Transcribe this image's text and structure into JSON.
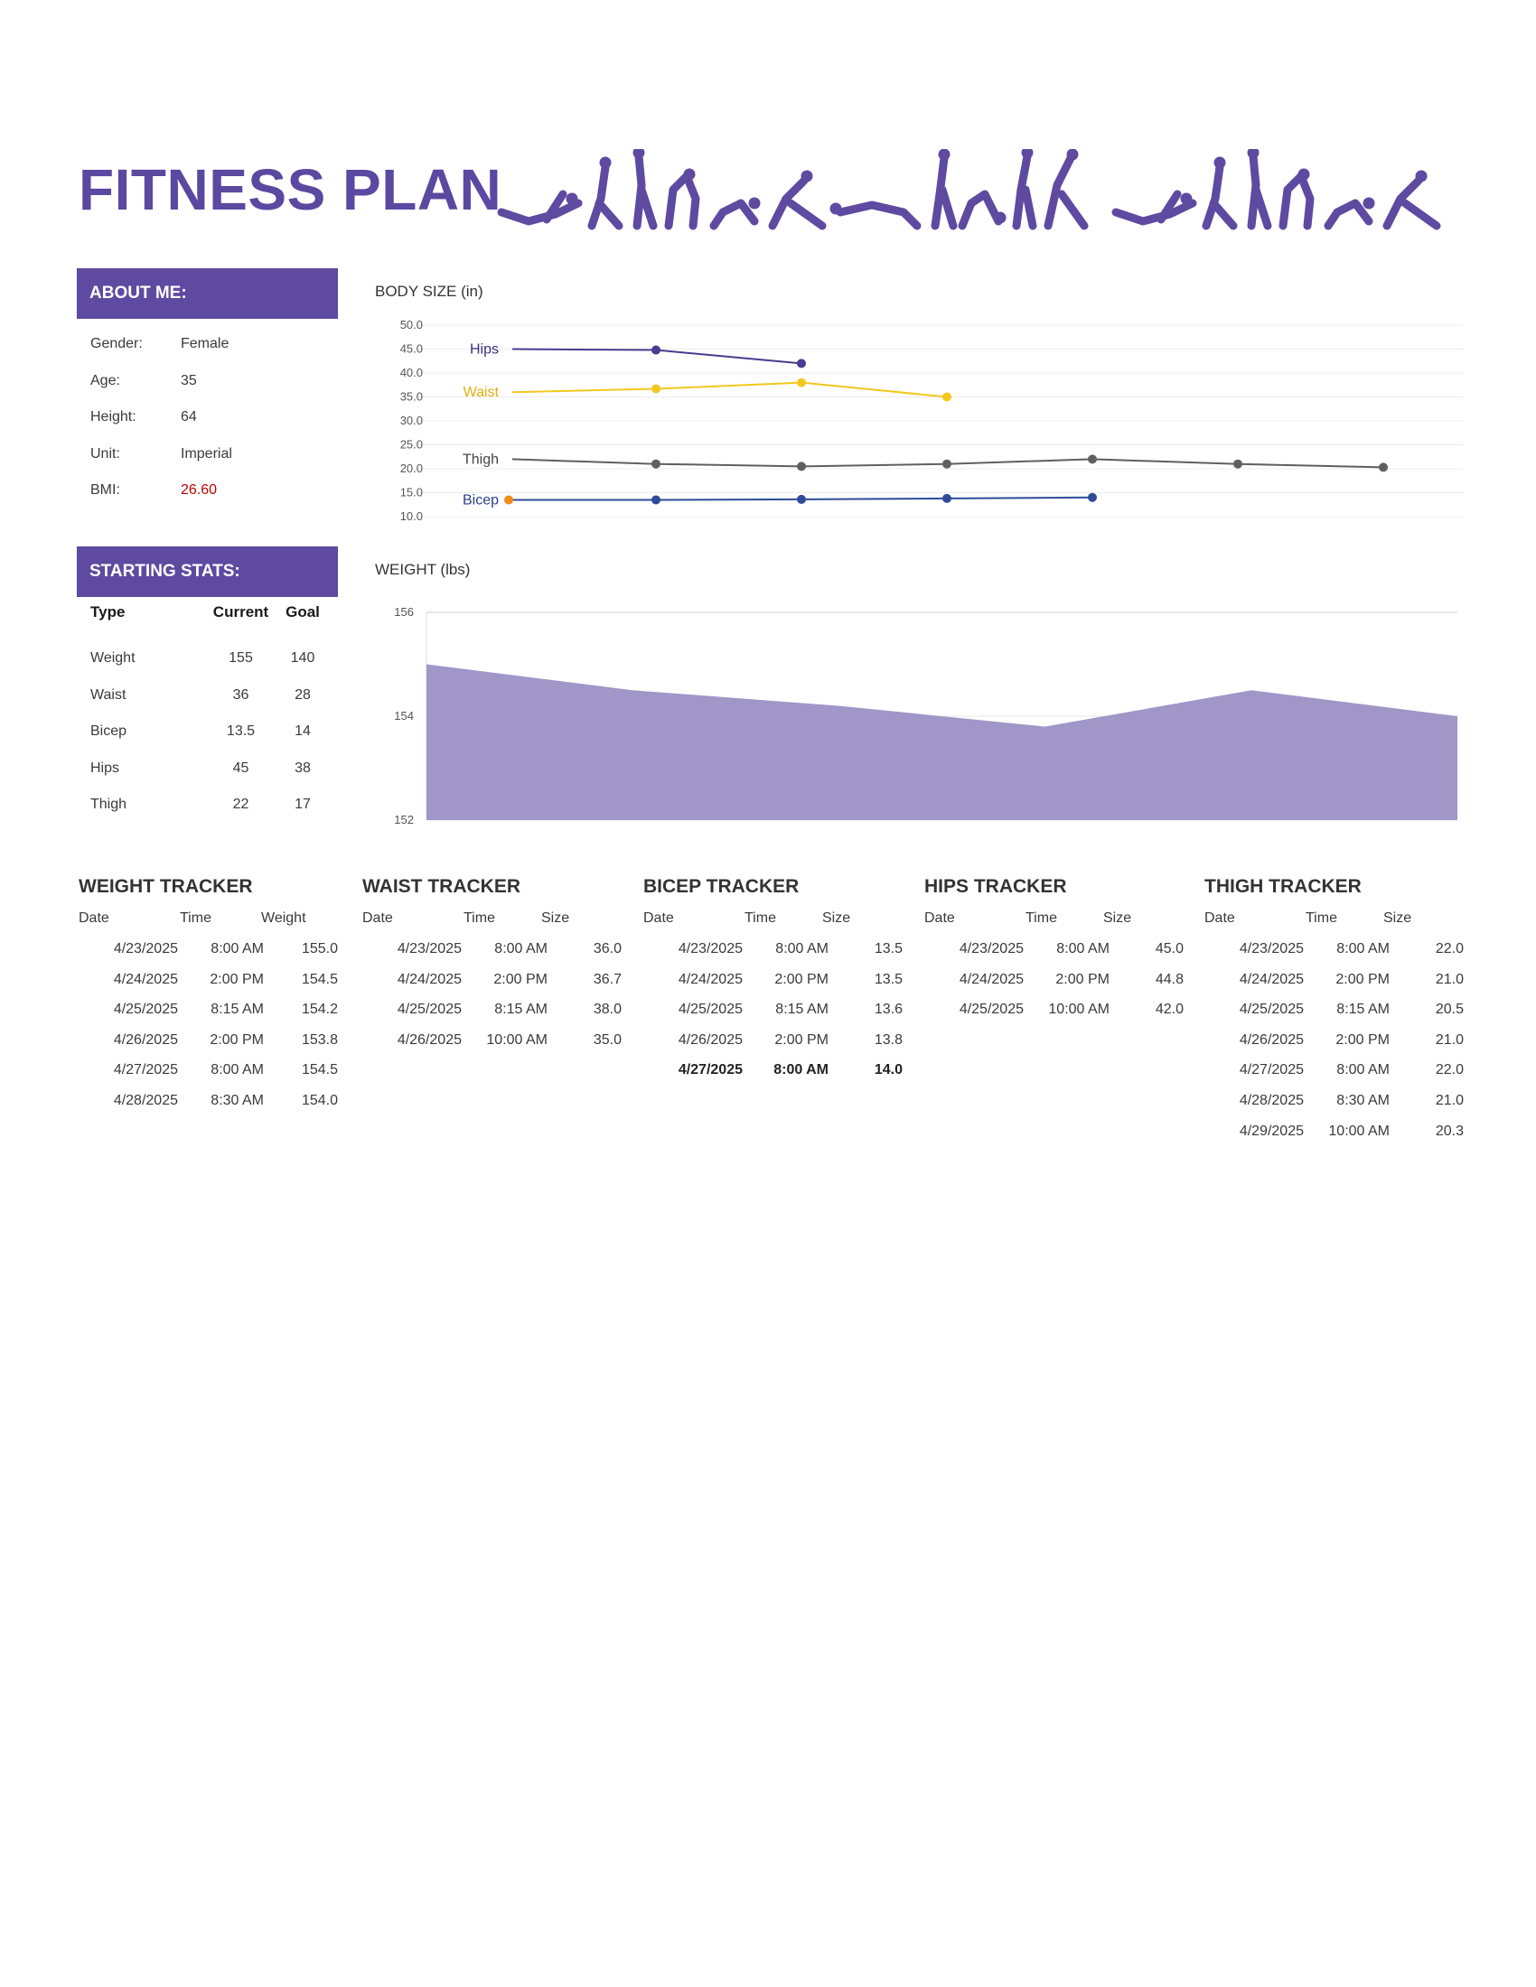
{
  "title": "FITNESS PLAN",
  "colors": {
    "accent": "#5e4aa0",
    "bmi": "#c00000",
    "hips": "#4b3a8f",
    "waist": "#f2c81e",
    "thigh": "#5f5f5f",
    "bicep": "#2f4b9a",
    "bicep_first_point": "#f08c1a",
    "weight_area": "#a096c8"
  },
  "about": {
    "header": "ABOUT ME:",
    "rows": [
      {
        "label": "Gender:",
        "value": "Female"
      },
      {
        "label": "Age:",
        "value": "35"
      },
      {
        "label": "Height:",
        "value": "64"
      },
      {
        "label": "Unit:",
        "value": "Imperial"
      },
      {
        "label": "BMI:",
        "value": "26.60"
      }
    ]
  },
  "stats": {
    "header": "STARTING STATS:",
    "columns": [
      "Type",
      "Current",
      "Goal"
    ],
    "rows": [
      [
        "Weight",
        "155",
        "140"
      ],
      [
        "Waist",
        "36",
        "28"
      ],
      [
        "Bicep",
        "13.5",
        "14"
      ],
      [
        "Hips",
        "45",
        "38"
      ],
      [
        "Thigh",
        "22",
        "17"
      ]
    ]
  },
  "chart_data": [
    {
      "type": "line",
      "title": "BODY SIZE (in)",
      "ylim": [
        10,
        50
      ],
      "yticks": [
        "50.0",
        "45.0",
        "40.0",
        "35.0",
        "30.0",
        "25.0",
        "20.0",
        "15.0",
        "10.0"
      ],
      "grid": true,
      "legend": "inline labels at series start",
      "series": [
        {
          "name": "Hips",
          "values": [
            45.0,
            44.8,
            42.0
          ]
        },
        {
          "name": "Waist",
          "values": [
            36.0,
            36.7,
            38.0,
            35.0
          ]
        },
        {
          "name": "Thigh",
          "values": [
            22.0,
            21.0,
            20.5,
            21.0,
            22.0,
            21.0,
            20.3
          ]
        },
        {
          "name": "Bicep",
          "values": [
            13.5,
            13.5,
            13.6,
            13.8,
            14.0
          ]
        }
      ]
    },
    {
      "type": "area",
      "title": "WEIGHT (lbs)",
      "ylim": [
        152,
        156
      ],
      "yticks": [
        "156",
        "154",
        "152"
      ],
      "values": [
        155.0,
        154.5,
        154.2,
        153.8,
        154.5,
        154.0
      ]
    }
  ],
  "trackers": [
    {
      "title": "WEIGHT TRACKER",
      "columns": [
        "Date",
        "Time",
        "Weight"
      ],
      "rows": [
        [
          "4/23/2025",
          "8:00 AM",
          "155.0"
        ],
        [
          "4/24/2025",
          "2:00 PM",
          "154.5"
        ],
        [
          "4/25/2025",
          "8:15 AM",
          "154.2"
        ],
        [
          "4/26/2025",
          "2:00 PM",
          "153.8"
        ],
        [
          "4/27/2025",
          "8:00 AM",
          "154.5"
        ],
        [
          "4/28/2025",
          "8:30 AM",
          "154.0"
        ]
      ]
    },
    {
      "title": "WAIST TRACKER",
      "columns": [
        "Date",
        "Time",
        "Size"
      ],
      "rows": [
        [
          "4/23/2025",
          "8:00 AM",
          "36.0"
        ],
        [
          "4/24/2025",
          "2:00 PM",
          "36.7"
        ],
        [
          "4/25/2025",
          "8:15 AM",
          "38.0"
        ],
        [
          "4/26/2025",
          "10:00 AM",
          "35.0"
        ]
      ]
    },
    {
      "title": "BICEP TRACKER",
      "columns": [
        "Date",
        "Time",
        "Size"
      ],
      "bold_row": 4,
      "rows": [
        [
          "4/23/2025",
          "8:00 AM",
          "13.5"
        ],
        [
          "4/24/2025",
          "2:00 PM",
          "13.5"
        ],
        [
          "4/25/2025",
          "8:15 AM",
          "13.6"
        ],
        [
          "4/26/2025",
          "2:00 PM",
          "13.8"
        ],
        [
          "4/27/2025",
          "8:00 AM",
          "14.0"
        ]
      ]
    },
    {
      "title": "HIPS TRACKER",
      "columns": [
        "Date",
        "Time",
        "Size"
      ],
      "rows": [
        [
          "4/23/2025",
          "8:00 AM",
          "45.0"
        ],
        [
          "4/24/2025",
          "2:00 PM",
          "44.8"
        ],
        [
          "4/25/2025",
          "10:00 AM",
          "42.0"
        ]
      ]
    },
    {
      "title": "THIGH TRACKER",
      "columns": [
        "Date",
        "Time",
        "Size"
      ],
      "rows": [
        [
          "4/23/2025",
          "8:00 AM",
          "22.0"
        ],
        [
          "4/24/2025",
          "2:00 PM",
          "21.0"
        ],
        [
          "4/25/2025",
          "8:15 AM",
          "20.5"
        ],
        [
          "4/26/2025",
          "2:00 PM",
          "21.0"
        ],
        [
          "4/27/2025",
          "8:00 AM",
          "22.0"
        ],
        [
          "4/28/2025",
          "8:30 AM",
          "21.0"
        ],
        [
          "4/29/2025",
          "10:00 AM",
          "20.3"
        ]
      ]
    }
  ]
}
